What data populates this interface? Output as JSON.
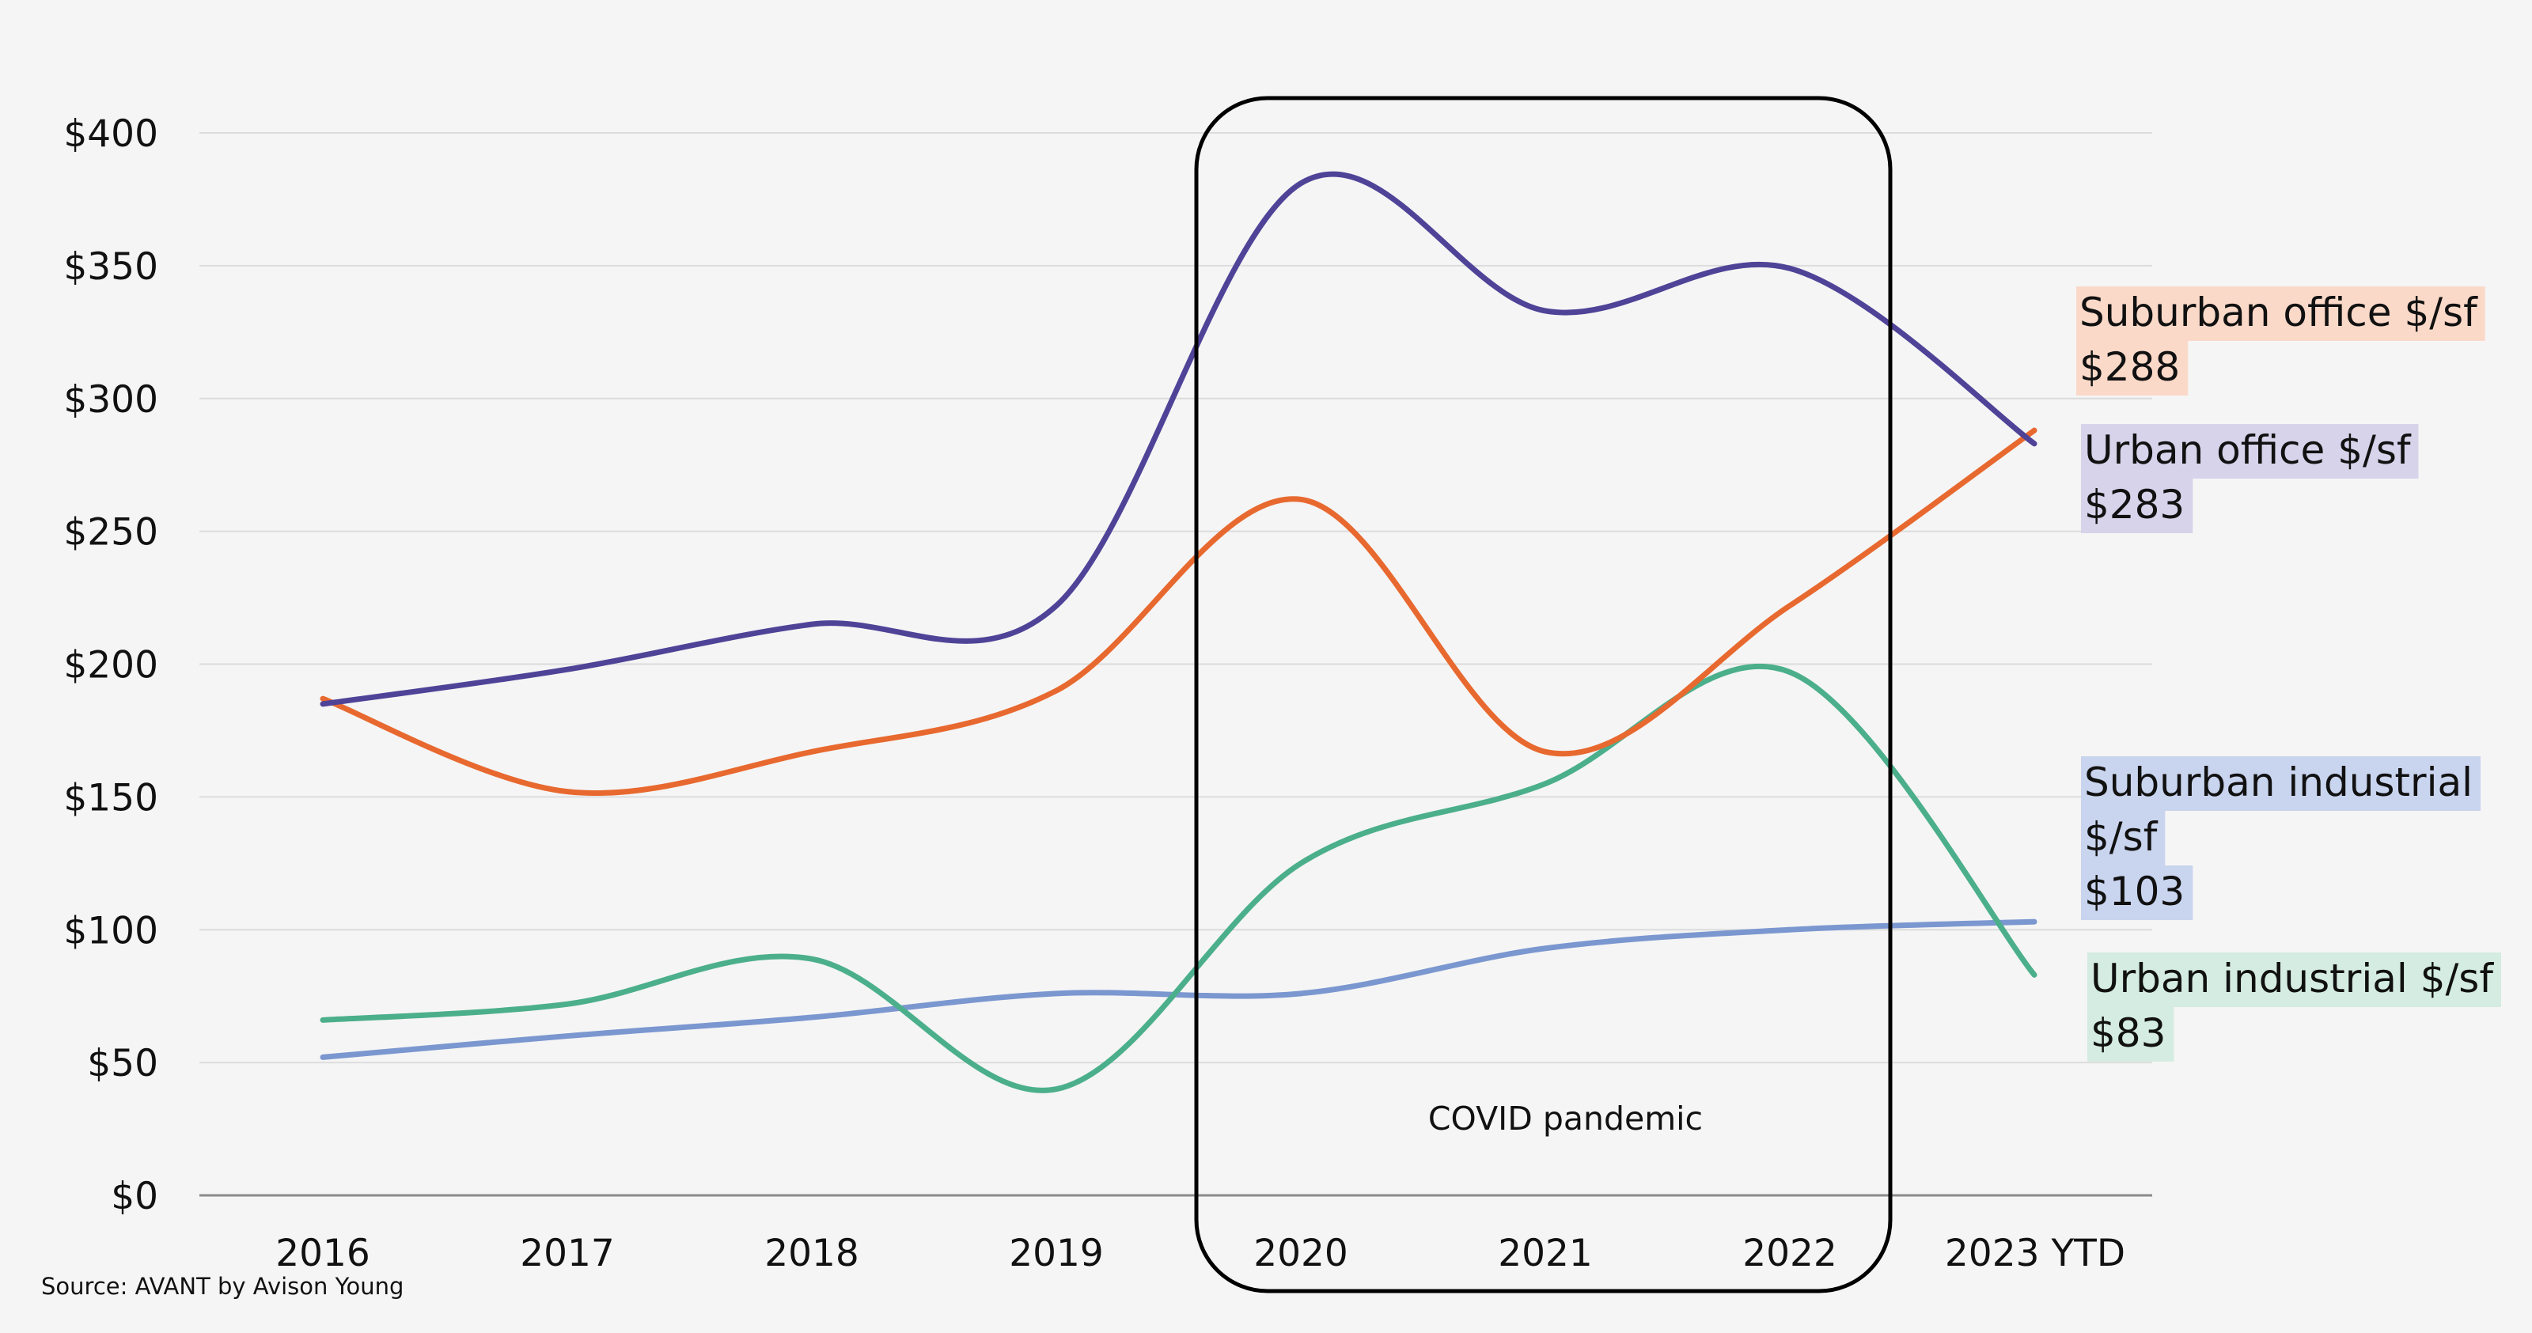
{
  "colors": {
    "background": "#f5f5f5",
    "gridline": "#dcdcdc",
    "axis": "#8a8a8a",
    "urban_office": "#4f4398",
    "suburban_office": "#e8692f",
    "urban_industrial": "#4caf8c",
    "suburban_industrial": "#7b97d0",
    "urban_office_label_bg": "#d6d3ea",
    "suburban_office_label_bg": "#fbd9c9",
    "urban_industrial_label_bg": "#d4ece1",
    "suburban_industrial_label_bg": "#c9d4ee"
  },
  "chart_data": {
    "type": "line",
    "categories": [
      "2016",
      "2017",
      "2018",
      "2019",
      "2020",
      "2021",
      "2022",
      "2023 YTD"
    ],
    "ylim": [
      0,
      400
    ],
    "y_ticks": [
      0,
      50,
      100,
      150,
      200,
      250,
      300,
      350,
      400
    ],
    "y_tick_labels": [
      "$0",
      "$50",
      "$100",
      "$150",
      "$200",
      "$250",
      "$300",
      "$350",
      "$400"
    ],
    "grid": true,
    "legend": "end-of-line labels",
    "series": [
      {
        "key": "urban_office",
        "values": [
          185,
          198,
          215,
          222,
          381,
          333,
          349,
          283
        ],
        "label_line1": "Urban office $/sf",
        "label_line2": "",
        "label_value": "$283"
      },
      {
        "key": "suburban_office",
        "values": [
          187,
          152,
          167,
          190,
          262,
          167,
          222,
          288
        ],
        "label_line1": "Suburban office $/sf",
        "label_line2": "",
        "label_value": "$288"
      },
      {
        "key": "urban_industrial",
        "values": [
          66,
          72,
          89,
          40,
          125,
          155,
          197,
          83
        ],
        "label_line1": "Urban industrial $/sf",
        "label_line2": "",
        "label_value": "$83"
      },
      {
        "key": "suburban_industrial",
        "values": [
          52,
          60,
          67,
          76,
          76,
          93,
          100,
          103
        ],
        "label_line1": "Suburban industrial",
        "label_line2": "$/sf",
        "label_value": "$103"
      }
    ],
    "annotation": "COVID pandemic",
    "annotation_span": [
      "2020",
      "2022"
    ],
    "source": "Source: AVANT by Avison Young"
  }
}
